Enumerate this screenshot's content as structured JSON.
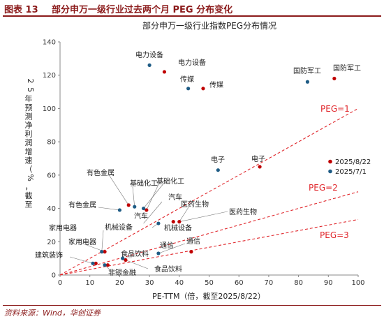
{
  "figure": {
    "label": "图表 13",
    "title": "部分申万一级行业过去两个月 PEG 分布变化",
    "source": "资料来源：Wind，华创证券"
  },
  "colors": {
    "series_old": "#1f5c85",
    "series_new": "#c00000",
    "peg_lines": "#e0262b",
    "header": "#8b1a1a"
  },
  "chart_data": {
    "type": "scatter",
    "title": "部分申万一级行业指数PEG分布情况",
    "xlabel": "PE-TTM（倍，截至2025/8/22）",
    "ylabel": "25年预测净利润增速（%，截至",
    "xlim": [
      0,
      100
    ],
    "ylim": [
      0,
      140
    ],
    "xticks": [
      0,
      10,
      20,
      30,
      40,
      50,
      60,
      70,
      80,
      90,
      100
    ],
    "yticks": [
      0,
      20,
      40,
      60,
      80,
      100,
      120,
      140
    ],
    "grid": false,
    "legend_position": "right",
    "series": [
      {
        "name": "2025/8/22",
        "color": "#c00000",
        "points": [
          {
            "label": "电力设备",
            "x": 35,
            "y": 122
          },
          {
            "label": "传媒",
            "x": 48,
            "y": 112
          },
          {
            "label": "国防军工",
            "x": 92,
            "y": 118
          },
          {
            "label": "电子",
            "x": 67,
            "y": 65
          },
          {
            "label": "有色金属",
            "x": 23,
            "y": 42
          },
          {
            "label": "基础化工",
            "x": 29,
            "y": 39
          },
          {
            "label": "汽车",
            "x": 38,
            "y": 32
          },
          {
            "label": "医药生物",
            "x": 40,
            "y": 32
          },
          {
            "label": "家用电器",
            "x": 15,
            "y": 14
          },
          {
            "label": "建筑装饰",
            "x": 12,
            "y": 7
          },
          {
            "label": "非银金融",
            "x": 16,
            "y": 6
          },
          {
            "label": "食品饮料",
            "x": 22,
            "y": 9
          },
          {
            "label": "通信",
            "x": 44,
            "y": 14
          }
        ]
      },
      {
        "name": "2025/7/1",
        "color": "#1f5c85",
        "points": [
          {
            "label": "电力设备",
            "x": 30,
            "y": 126
          },
          {
            "label": "传媒",
            "x": 43,
            "y": 112
          },
          {
            "label": "国防军工",
            "x": 83,
            "y": 116
          },
          {
            "label": "电子",
            "x": 53,
            "y": 63
          },
          {
            "label": "有色金属",
            "x": 20,
            "y": 39
          },
          {
            "label": "基础化工",
            "x": 25,
            "y": 41
          },
          {
            "label": "汽车",
            "x": 28,
            "y": 40
          },
          {
            "label": "机械设备",
            "x": 33,
            "y": 31
          },
          {
            "label": "家用电器",
            "x": 14,
            "y": 14
          },
          {
            "label": "建筑装饰",
            "x": 11,
            "y": 7
          },
          {
            "label": "非银金融",
            "x": 15,
            "y": 6
          },
          {
            "label": "食品饮料",
            "x": 21,
            "y": 10
          },
          {
            "label": "通信",
            "x": 33,
            "y": 13
          }
        ]
      }
    ],
    "reference_lines": [
      {
        "label": "PEG=1",
        "slope": 1
      },
      {
        "label": "PEG=2",
        "slope": 0.5
      },
      {
        "label": "PEG=3",
        "slope": 0.3333
      }
    ],
    "annotations": [
      {
        "text": "电力设备",
        "x": 30,
        "y": 126
      },
      {
        "text": "电力设备",
        "x": 35,
        "y": 122
      },
      {
        "text": "传媒",
        "x": 43,
        "y": 112
      },
      {
        "text": "传媒",
        "x": 48,
        "y": 112
      },
      {
        "text": "国防军工",
        "x": 83,
        "y": 116
      },
      {
        "text": "国防军工",
        "x": 92,
        "y": 118
      },
      {
        "text": "电子",
        "x": 53,
        "y": 63
      },
      {
        "text": "电子",
        "x": 67,
        "y": 65
      },
      {
        "text": "有色金属",
        "x": 23,
        "y": 42
      },
      {
        "text": "有色金属",
        "x": 20,
        "y": 39
      },
      {
        "text": "基础化工",
        "x": 25,
        "y": 41
      },
      {
        "text": "基础化工",
        "x": 29,
        "y": 39
      },
      {
        "text": "汽车",
        "x": 38,
        "y": 32
      },
      {
        "text": "汽车",
        "x": 28,
        "y": 40
      },
      {
        "text": "医药生物",
        "x": 40,
        "y": 32
      },
      {
        "text": "医药生物",
        "x": 40,
        "y": 32
      },
      {
        "text": "机械设备",
        "x": 33,
        "y": 31
      },
      {
        "text": "机械设备",
        "x": 33,
        "y": 31
      },
      {
        "text": "家用电器",
        "x": 14,
        "y": 14
      },
      {
        "text": "家用电器",
        "x": 15,
        "y": 14
      },
      {
        "text": "建筑装饰",
        "x": 11,
        "y": 7
      },
      {
        "text": "通信",
        "x": 33,
        "y": 13
      },
      {
        "text": "通信",
        "x": 44,
        "y": 14
      },
      {
        "text": "食品饮料",
        "x": 21,
        "y": 10
      },
      {
        "text": "食品饮料",
        "x": 22,
        "y": 9
      },
      {
        "text": "非银金融",
        "x": 15,
        "y": 6
      }
    ]
  }
}
